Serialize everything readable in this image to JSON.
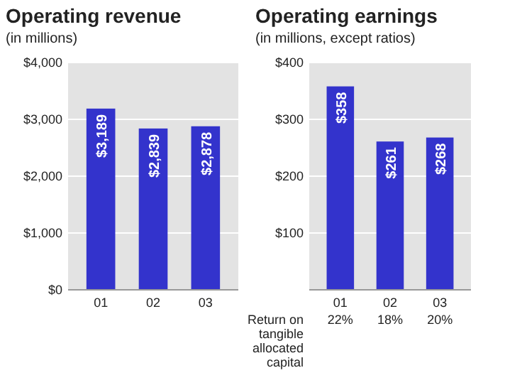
{
  "chart_data": [
    {
      "type": "bar",
      "title": "Operating revenue",
      "subtitle": "(in millions)",
      "categories": [
        "01",
        "02",
        "03"
      ],
      "values": [
        3189,
        2839,
        2878
      ],
      "color": "#3333cc",
      "value_labels": [
        "$3,189",
        "$2,839",
        "$2,878"
      ],
      "ylim": [
        0,
        4000
      ],
      "yticks": [
        {
          "value": 0,
          "label": "$0"
        },
        {
          "value": 1000,
          "label": "$1,000"
        },
        {
          "value": 2000,
          "label": "$2,000"
        },
        {
          "value": 3000,
          "label": "$3,000"
        },
        {
          "value": 4000,
          "label": "$4,000"
        }
      ],
      "grid": "y"
    },
    {
      "type": "bar",
      "title": "Operating earnings",
      "subtitle": "(in millions, except ratios)",
      "categories": [
        "01",
        "02",
        "03"
      ],
      "values": [
        358,
        261,
        268
      ],
      "color": "#3333cc",
      "value_labels": [
        "$358",
        "$261",
        "$268"
      ],
      "ylim": [
        0,
        400
      ],
      "yticks": [
        {
          "value": 0,
          "label": null
        },
        {
          "value": 100,
          "label": "$100"
        },
        {
          "value": 200,
          "label": "$200"
        },
        {
          "value": 300,
          "label": "$300"
        },
        {
          "value": 400,
          "label": "$400"
        }
      ],
      "grid": "y",
      "annotations": [
        "Return on tangible allocated capital",
        "22%",
        "18%",
        "20%"
      ]
    }
  ]
}
